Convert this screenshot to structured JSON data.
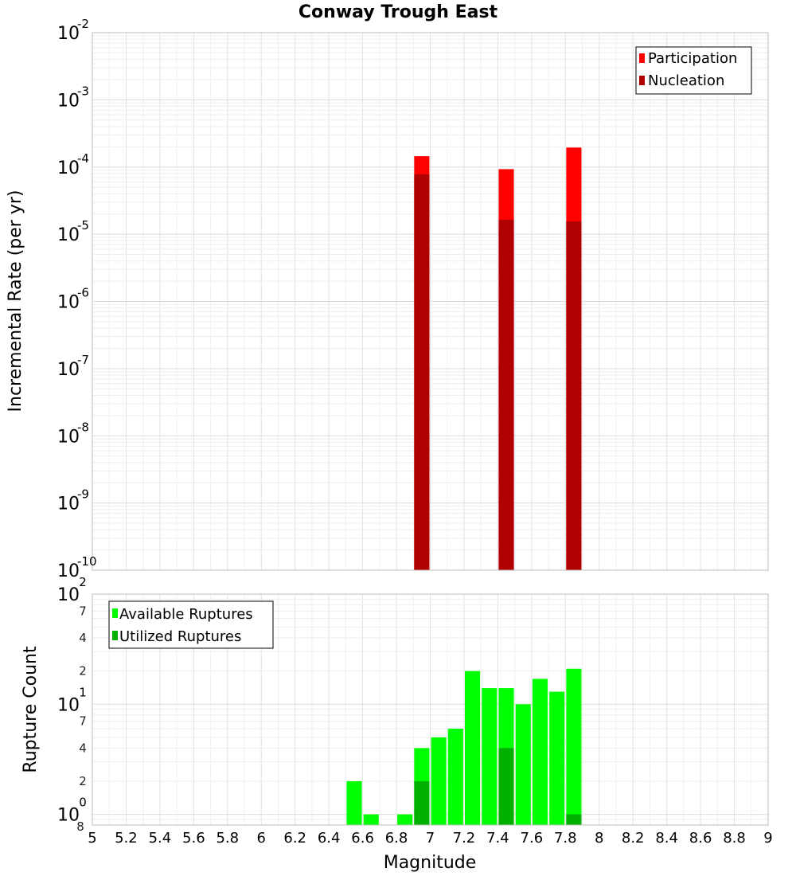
{
  "chart_data": [
    {
      "type": "bar",
      "title": "Conway Trough East",
      "xlabel": "",
      "ylabel": "Incremental Rate (per yr)",
      "y_scale": "log",
      "ylim": [
        1e-10,
        0.01
      ],
      "xlim": [
        5,
        9
      ],
      "y_major_ticks": [
        {
          "base": "10",
          "exp": "-2"
        },
        {
          "base": "10",
          "exp": "-3"
        },
        {
          "base": "10",
          "exp": "-4"
        },
        {
          "base": "10",
          "exp": "-5"
        },
        {
          "base": "10",
          "exp": "-6"
        },
        {
          "base": "10",
          "exp": "-7"
        },
        {
          "base": "10",
          "exp": "-8"
        },
        {
          "base": "10",
          "exp": "-9"
        },
        {
          "base": "10",
          "exp": "-10"
        }
      ],
      "legend_position": "top-right",
      "series": [
        {
          "name": "Participation",
          "color": "#ff0000",
          "x": [
            6.95,
            7.45,
            7.85
          ],
          "values": [
            0.000145,
            9.3e-05,
            0.000195
          ]
        },
        {
          "name": "Nucleation",
          "color": "#b00000",
          "x": [
            6.95,
            7.45,
            7.85
          ],
          "values": [
            7.8e-05,
            1.65e-05,
            1.55e-05
          ]
        }
      ]
    },
    {
      "type": "bar",
      "title": "",
      "xlabel": "Magnitude",
      "ylabel": "Rupture Count",
      "y_scale": "log",
      "ylim": [
        0.8,
        100
      ],
      "xlim": [
        5,
        9
      ],
      "x_ticks": [
        "5",
        "5.2",
        "5.4",
        "5.6",
        "5.8",
        "6",
        "6.2",
        "6.4",
        "6.6",
        "6.8",
        "7",
        "7.2",
        "7.4",
        "7.6",
        "7.8",
        "8",
        "8.2",
        "8.4",
        "8.6",
        "8.8",
        "9"
      ],
      "y_major_ticks": [
        {
          "base": "10",
          "exp": "2"
        },
        {
          "base": "10",
          "exp": "1"
        },
        {
          "base": "10",
          "exp": "0"
        }
      ],
      "y_minor_ticks": [
        "7",
        "4",
        "2",
        "7",
        "4",
        "2",
        "8"
      ],
      "legend_position": "top-left",
      "series": [
        {
          "name": "Available Ruptures",
          "color": "#00ff00",
          "x": [
            6.55,
            6.65,
            6.85,
            6.95,
            7.05,
            7.15,
            7.25,
            7.35,
            7.45,
            7.55,
            7.65,
            7.75,
            7.85
          ],
          "values": [
            2,
            1,
            1,
            4,
            5,
            6,
            20,
            14,
            14,
            10,
            17,
            13,
            21
          ]
        },
        {
          "name": "Utilized Ruptures",
          "color": "#00b000",
          "x": [
            6.95,
            7.45,
            7.85
          ],
          "values": [
            2,
            4,
            1
          ]
        }
      ]
    }
  ]
}
